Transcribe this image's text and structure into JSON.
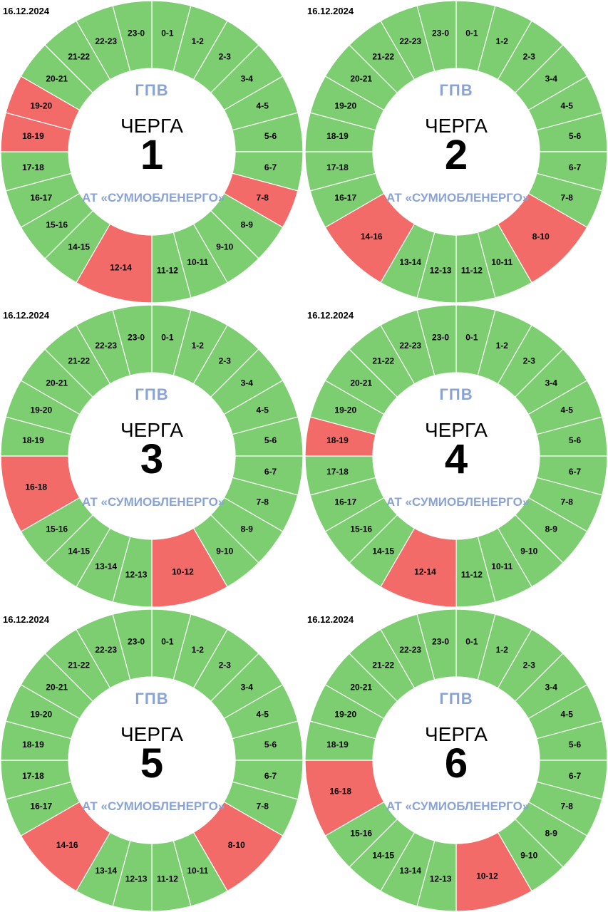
{
  "colors": {
    "on": "#7cce70",
    "off": "#f26b69",
    "divider": "#ffffff"
  },
  "center": {
    "title": "ГПВ",
    "word": "ЧЕРГА",
    "company": "АТ «СУМИОБЛЕНЕРГО»"
  },
  "chart_data": [
    {
      "type": "pie",
      "date": "16.12.2024",
      "queue": "1",
      "segments": [
        {
          "label": "0-1",
          "start": 0,
          "end": 1,
          "status": "on"
        },
        {
          "label": "1-2",
          "start": 1,
          "end": 2,
          "status": "on"
        },
        {
          "label": "2-3",
          "start": 2,
          "end": 3,
          "status": "on"
        },
        {
          "label": "3-4",
          "start": 3,
          "end": 4,
          "status": "on"
        },
        {
          "label": "4-5",
          "start": 4,
          "end": 5,
          "status": "on"
        },
        {
          "label": "5-6",
          "start": 5,
          "end": 6,
          "status": "on"
        },
        {
          "label": "6-7",
          "start": 6,
          "end": 7,
          "status": "on"
        },
        {
          "label": "7-8",
          "start": 7,
          "end": 8,
          "status": "off"
        },
        {
          "label": "8-9",
          "start": 8,
          "end": 9,
          "status": "on"
        },
        {
          "label": "9-10",
          "start": 9,
          "end": 10,
          "status": "on"
        },
        {
          "label": "10-11",
          "start": 10,
          "end": 11,
          "status": "on"
        },
        {
          "label": "11-12",
          "start": 11,
          "end": 12,
          "status": "on"
        },
        {
          "label": "12-14",
          "start": 12,
          "end": 14,
          "status": "off"
        },
        {
          "label": "14-15",
          "start": 14,
          "end": 15,
          "status": "on"
        },
        {
          "label": "15-16",
          "start": 15,
          "end": 16,
          "status": "on"
        },
        {
          "label": "16-17",
          "start": 16,
          "end": 17,
          "status": "on"
        },
        {
          "label": "17-18",
          "start": 17,
          "end": 18,
          "status": "on"
        },
        {
          "label": "18-19",
          "start": 18,
          "end": 19,
          "status": "off"
        },
        {
          "label": "19-20",
          "start": 19,
          "end": 20,
          "status": "off"
        },
        {
          "label": "20-21",
          "start": 20,
          "end": 21,
          "status": "on"
        },
        {
          "label": "21-22",
          "start": 21,
          "end": 22,
          "status": "on"
        },
        {
          "label": "22-23",
          "start": 22,
          "end": 23,
          "status": "on"
        },
        {
          "label": "23-0",
          "start": 23,
          "end": 24,
          "status": "on"
        }
      ]
    },
    {
      "type": "pie",
      "date": "16.12.2024",
      "queue": "2",
      "segments": [
        {
          "label": "0-1",
          "start": 0,
          "end": 1,
          "status": "on"
        },
        {
          "label": "1-2",
          "start": 1,
          "end": 2,
          "status": "on"
        },
        {
          "label": "2-3",
          "start": 2,
          "end": 3,
          "status": "on"
        },
        {
          "label": "3-4",
          "start": 3,
          "end": 4,
          "status": "on"
        },
        {
          "label": "4-5",
          "start": 4,
          "end": 5,
          "status": "on"
        },
        {
          "label": "5-6",
          "start": 5,
          "end": 6,
          "status": "on"
        },
        {
          "label": "6-7",
          "start": 6,
          "end": 7,
          "status": "on"
        },
        {
          "label": "7-8",
          "start": 7,
          "end": 8,
          "status": "on"
        },
        {
          "label": "8-10",
          "start": 8,
          "end": 10,
          "status": "off"
        },
        {
          "label": "10-11",
          "start": 10,
          "end": 11,
          "status": "on"
        },
        {
          "label": "11-12",
          "start": 11,
          "end": 12,
          "status": "on"
        },
        {
          "label": "12-13",
          "start": 12,
          "end": 13,
          "status": "on"
        },
        {
          "label": "13-14",
          "start": 13,
          "end": 14,
          "status": "on"
        },
        {
          "label": "14-16",
          "start": 14,
          "end": 16,
          "status": "off"
        },
        {
          "label": "16-17",
          "start": 16,
          "end": 17,
          "status": "on"
        },
        {
          "label": "17-18",
          "start": 17,
          "end": 18,
          "status": "on"
        },
        {
          "label": "18-19",
          "start": 18,
          "end": 19,
          "status": "on"
        },
        {
          "label": "19-20",
          "start": 19,
          "end": 20,
          "status": "on"
        },
        {
          "label": "20-21",
          "start": 20,
          "end": 21,
          "status": "on"
        },
        {
          "label": "21-22",
          "start": 21,
          "end": 22,
          "status": "on"
        },
        {
          "label": "22-23",
          "start": 22,
          "end": 23,
          "status": "on"
        },
        {
          "label": "23-0",
          "start": 23,
          "end": 24,
          "status": "on"
        }
      ]
    },
    {
      "type": "pie",
      "date": "16.12.2024",
      "queue": "3",
      "segments": [
        {
          "label": "0-1",
          "start": 0,
          "end": 1,
          "status": "on"
        },
        {
          "label": "1-2",
          "start": 1,
          "end": 2,
          "status": "on"
        },
        {
          "label": "2-3",
          "start": 2,
          "end": 3,
          "status": "on"
        },
        {
          "label": "3-4",
          "start": 3,
          "end": 4,
          "status": "on"
        },
        {
          "label": "4-5",
          "start": 4,
          "end": 5,
          "status": "on"
        },
        {
          "label": "5-6",
          "start": 5,
          "end": 6,
          "status": "on"
        },
        {
          "label": "6-7",
          "start": 6,
          "end": 7,
          "status": "on"
        },
        {
          "label": "7-8",
          "start": 7,
          "end": 8,
          "status": "on"
        },
        {
          "label": "8-9",
          "start": 8,
          "end": 9,
          "status": "on"
        },
        {
          "label": "9-10",
          "start": 9,
          "end": 10,
          "status": "on"
        },
        {
          "label": "10-12",
          "start": 10,
          "end": 12,
          "status": "off"
        },
        {
          "label": "12-13",
          "start": 12,
          "end": 13,
          "status": "on"
        },
        {
          "label": "13-14",
          "start": 13,
          "end": 14,
          "status": "on"
        },
        {
          "label": "14-15",
          "start": 14,
          "end": 15,
          "status": "on"
        },
        {
          "label": "15-16",
          "start": 15,
          "end": 16,
          "status": "on"
        },
        {
          "label": "16-18",
          "start": 16,
          "end": 18,
          "status": "off"
        },
        {
          "label": "18-19",
          "start": 18,
          "end": 19,
          "status": "on"
        },
        {
          "label": "19-20",
          "start": 19,
          "end": 20,
          "status": "on"
        },
        {
          "label": "20-21",
          "start": 20,
          "end": 21,
          "status": "on"
        },
        {
          "label": "21-22",
          "start": 21,
          "end": 22,
          "status": "on"
        },
        {
          "label": "22-23",
          "start": 22,
          "end": 23,
          "status": "on"
        },
        {
          "label": "23-0",
          "start": 23,
          "end": 24,
          "status": "on"
        }
      ]
    },
    {
      "type": "pie",
      "date": "16.12.2024",
      "queue": "4",
      "segments": [
        {
          "label": "0-1",
          "start": 0,
          "end": 1,
          "status": "on"
        },
        {
          "label": "1-2",
          "start": 1,
          "end": 2,
          "status": "on"
        },
        {
          "label": "2-3",
          "start": 2,
          "end": 3,
          "status": "on"
        },
        {
          "label": "3-4",
          "start": 3,
          "end": 4,
          "status": "on"
        },
        {
          "label": "4-5",
          "start": 4,
          "end": 5,
          "status": "on"
        },
        {
          "label": "5-6",
          "start": 5,
          "end": 6,
          "status": "on"
        },
        {
          "label": "6-7",
          "start": 6,
          "end": 7,
          "status": "on"
        },
        {
          "label": "7-8",
          "start": 7,
          "end": 8,
          "status": "on"
        },
        {
          "label": "8-9",
          "start": 8,
          "end": 9,
          "status": "on"
        },
        {
          "label": "9-10",
          "start": 9,
          "end": 10,
          "status": "on"
        },
        {
          "label": "10-11",
          "start": 10,
          "end": 11,
          "status": "on"
        },
        {
          "label": "11-12",
          "start": 11,
          "end": 12,
          "status": "on"
        },
        {
          "label": "12-14",
          "start": 12,
          "end": 14,
          "status": "off"
        },
        {
          "label": "14-15",
          "start": 14,
          "end": 15,
          "status": "on"
        },
        {
          "label": "15-16",
          "start": 15,
          "end": 16,
          "status": "on"
        },
        {
          "label": "16-17",
          "start": 16,
          "end": 17,
          "status": "on"
        },
        {
          "label": "17-18",
          "start": 17,
          "end": 18,
          "status": "on"
        },
        {
          "label": "18-19",
          "start": 18,
          "end": 19,
          "status": "off"
        },
        {
          "label": "19-20",
          "start": 19,
          "end": 20,
          "status": "on"
        },
        {
          "label": "20-21",
          "start": 20,
          "end": 21,
          "status": "on"
        },
        {
          "label": "21-22",
          "start": 21,
          "end": 22,
          "status": "on"
        },
        {
          "label": "22-23",
          "start": 22,
          "end": 23,
          "status": "on"
        },
        {
          "label": "23-0",
          "start": 23,
          "end": 24,
          "status": "on"
        }
      ]
    },
    {
      "type": "pie",
      "date": "16.12.2024",
      "queue": "5",
      "segments": [
        {
          "label": "0-1",
          "start": 0,
          "end": 1,
          "status": "on"
        },
        {
          "label": "1-2",
          "start": 1,
          "end": 2,
          "status": "on"
        },
        {
          "label": "2-3",
          "start": 2,
          "end": 3,
          "status": "on"
        },
        {
          "label": "3-4",
          "start": 3,
          "end": 4,
          "status": "on"
        },
        {
          "label": "4-5",
          "start": 4,
          "end": 5,
          "status": "on"
        },
        {
          "label": "5-6",
          "start": 5,
          "end": 6,
          "status": "on"
        },
        {
          "label": "6-7",
          "start": 6,
          "end": 7,
          "status": "on"
        },
        {
          "label": "7-8",
          "start": 7,
          "end": 8,
          "status": "on"
        },
        {
          "label": "8-10",
          "start": 8,
          "end": 10,
          "status": "off"
        },
        {
          "label": "10-11",
          "start": 10,
          "end": 11,
          "status": "on"
        },
        {
          "label": "11-12",
          "start": 11,
          "end": 12,
          "status": "on"
        },
        {
          "label": "12-13",
          "start": 12,
          "end": 13,
          "status": "on"
        },
        {
          "label": "13-14",
          "start": 13,
          "end": 14,
          "status": "on"
        },
        {
          "label": "14-16",
          "start": 14,
          "end": 16,
          "status": "off"
        },
        {
          "label": "16-17",
          "start": 16,
          "end": 17,
          "status": "on"
        },
        {
          "label": "17-18",
          "start": 17,
          "end": 18,
          "status": "on"
        },
        {
          "label": "18-19",
          "start": 18,
          "end": 19,
          "status": "on"
        },
        {
          "label": "19-20",
          "start": 19,
          "end": 20,
          "status": "on"
        },
        {
          "label": "20-21",
          "start": 20,
          "end": 21,
          "status": "on"
        },
        {
          "label": "21-22",
          "start": 21,
          "end": 22,
          "status": "on"
        },
        {
          "label": "22-23",
          "start": 22,
          "end": 23,
          "status": "on"
        },
        {
          "label": "23-0",
          "start": 23,
          "end": 24,
          "status": "on"
        }
      ]
    },
    {
      "type": "pie",
      "date": "16.12.2024",
      "queue": "6",
      "segments": [
        {
          "label": "0-1",
          "start": 0,
          "end": 1,
          "status": "on"
        },
        {
          "label": "1-2",
          "start": 1,
          "end": 2,
          "status": "on"
        },
        {
          "label": "2-3",
          "start": 2,
          "end": 3,
          "status": "on"
        },
        {
          "label": "3-4",
          "start": 3,
          "end": 4,
          "status": "on"
        },
        {
          "label": "4-5",
          "start": 4,
          "end": 5,
          "status": "on"
        },
        {
          "label": "5-6",
          "start": 5,
          "end": 6,
          "status": "on"
        },
        {
          "label": "6-7",
          "start": 6,
          "end": 7,
          "status": "on"
        },
        {
          "label": "7-8",
          "start": 7,
          "end": 8,
          "status": "on"
        },
        {
          "label": "8-9",
          "start": 8,
          "end": 9,
          "status": "on"
        },
        {
          "label": "9-10",
          "start": 9,
          "end": 10,
          "status": "on"
        },
        {
          "label": "10-12",
          "start": 10,
          "end": 12,
          "status": "off"
        },
        {
          "label": "12-13",
          "start": 12,
          "end": 13,
          "status": "on"
        },
        {
          "label": "13-14",
          "start": 13,
          "end": 14,
          "status": "on"
        },
        {
          "label": "14-15",
          "start": 14,
          "end": 15,
          "status": "on"
        },
        {
          "label": "15-16",
          "start": 15,
          "end": 16,
          "status": "on"
        },
        {
          "label": "16-18",
          "start": 16,
          "end": 18,
          "status": "off"
        },
        {
          "label": "18-19",
          "start": 18,
          "end": 19,
          "status": "on"
        },
        {
          "label": "19-20",
          "start": 19,
          "end": 20,
          "status": "on"
        },
        {
          "label": "20-21",
          "start": 20,
          "end": 21,
          "status": "on"
        },
        {
          "label": "21-22",
          "start": 21,
          "end": 22,
          "status": "on"
        },
        {
          "label": "22-23",
          "start": 22,
          "end": 23,
          "status": "on"
        },
        {
          "label": "23-0",
          "start": 23,
          "end": 24,
          "status": "on"
        }
      ]
    }
  ]
}
